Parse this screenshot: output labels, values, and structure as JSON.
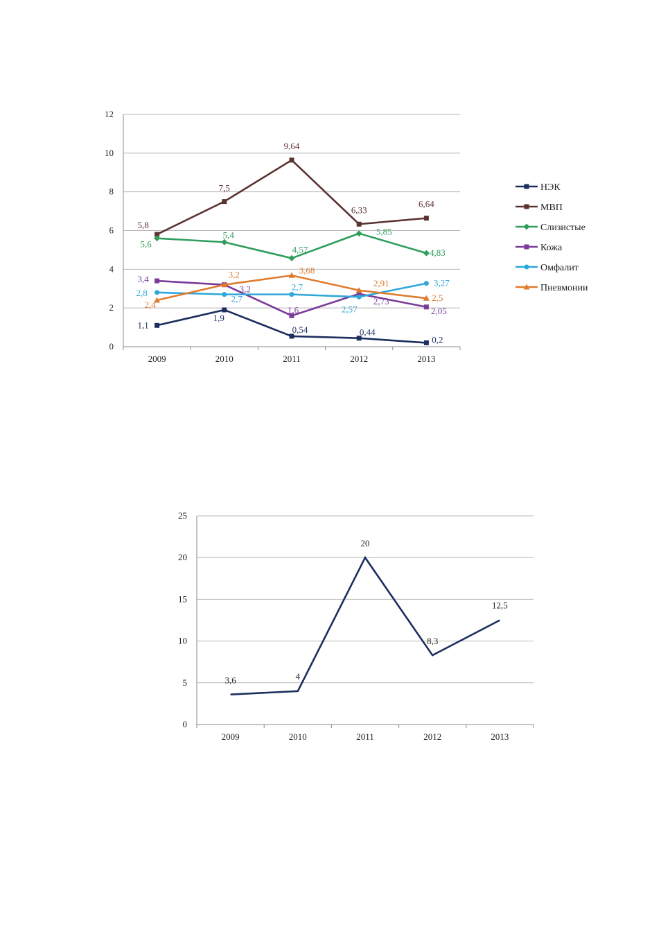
{
  "chart_data": [
    {
      "type": "line",
      "title": "",
      "xlabel": "",
      "ylabel": "",
      "ylim": [
        0,
        12
      ],
      "yticks": [
        "0",
        "2",
        "4",
        "6",
        "8",
        "10",
        "12"
      ],
      "categories": [
        "2009",
        "2010",
        "2011",
        "2012",
        "2013"
      ],
      "grid": true,
      "legend": "right",
      "series": [
        {
          "name": "НЭК",
          "color": "#1b2e5e",
          "marker": "square",
          "values": [
            1.1,
            1.9,
            0.54,
            0.44,
            0.2
          ],
          "labels": [
            "1,1",
            "1,9",
            "0,54",
            "0,44",
            "0,2"
          ]
        },
        {
          "name": "МВП",
          "color": "#5b3230",
          "marker": "square",
          "values": [
            5.8,
            7.5,
            9.64,
            6.33,
            6.64
          ],
          "labels": [
            "5,8",
            "7,5",
            "9,64",
            "6,33",
            "6,64"
          ]
        },
        {
          "name": "Слизистые",
          "color": "#2e9e5b",
          "marker": "diamond",
          "values": [
            5.6,
            5.4,
            4.57,
            5.85,
            4.83
          ],
          "labels": [
            "5,6",
            "5,4",
            "4,57",
            "5,85",
            "4,83"
          ]
        },
        {
          "name": "Кожа",
          "color": "#7a3b9a",
          "marker": "square",
          "values": [
            3.4,
            3.2,
            1.6,
            2.73,
            2.05
          ],
          "labels": [
            "3,4",
            "3,2",
            "1,6",
            "2,73",
            "2,05"
          ]
        },
        {
          "name": "Омфалит",
          "color": "#2ea7d9",
          "marker": "circle",
          "values": [
            2.8,
            2.7,
            2.7,
            2.57,
            3.27
          ],
          "labels": [
            "2,8",
            "2,7",
            "2,7",
            "2,57",
            "3,27"
          ]
        },
        {
          "name": "Пневмонии",
          "color": "#e07b2e",
          "marker": "triangle",
          "values": [
            2.4,
            3.2,
            3.68,
            2.91,
            2.5
          ],
          "labels": [
            "2,4",
            "3,2",
            "3,68",
            "2,91",
            "2,5"
          ]
        }
      ]
    },
    {
      "type": "line",
      "title": "",
      "xlabel": "",
      "ylabel": "",
      "ylim": [
        0,
        25
      ],
      "yticks": [
        "0",
        "5",
        "10",
        "15",
        "20",
        "25"
      ],
      "categories": [
        "2009",
        "2010",
        "2011",
        "2012",
        "2013"
      ],
      "grid": true,
      "legend": "none",
      "series": [
        {
          "color": "#1b2e5e",
          "values": [
            3.6,
            4,
            20,
            8.3,
            12.5
          ],
          "labels": [
            "3,6",
            "4",
            "20",
            "8,3",
            "12,5"
          ]
        }
      ]
    }
  ]
}
